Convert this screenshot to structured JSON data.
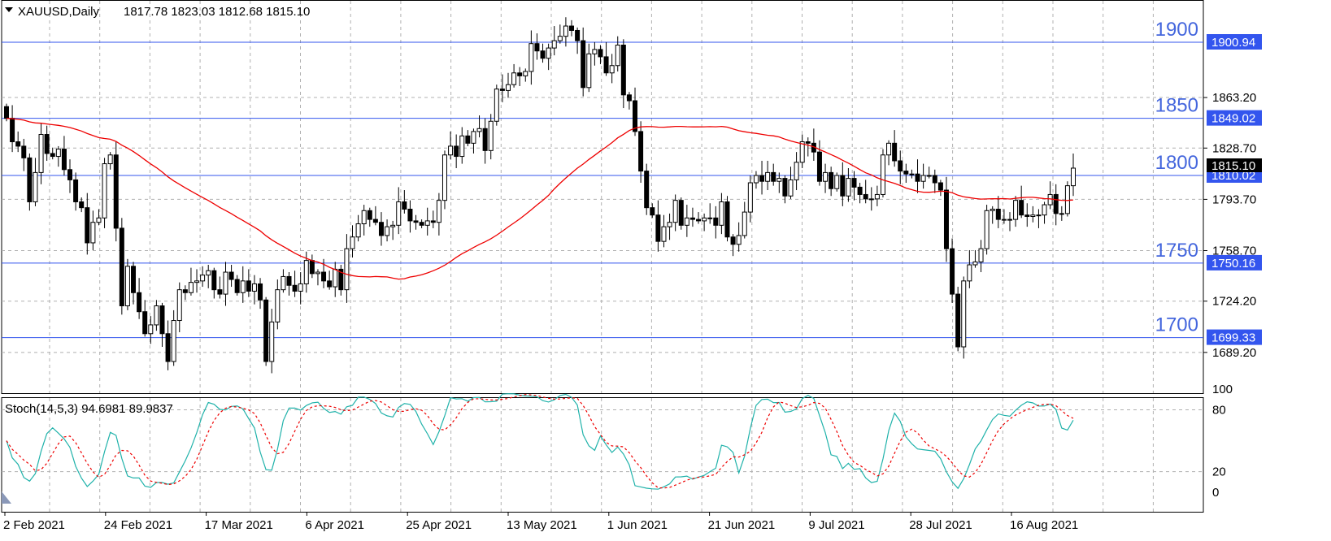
{
  "header": {
    "symbol_label": "XAUUSD,Daily",
    "ohlc_label": "1817.78 1823.03 1812.68 1815.10"
  },
  "stoch_header": {
    "label": "Stoch(14,5,3) 94.6981 89.9837"
  },
  "levels": [
    {
      "big_label": "1900",
      "price_tag": "1900.94",
      "price": 1900.94
    },
    {
      "big_label": "1850",
      "price_tag": "1849.02",
      "price": 1849.02
    },
    {
      "big_label": "1800",
      "price_tag": "1810.02",
      "price": 1810.02
    },
    {
      "big_label": "1750",
      "price_tag": "1750.16",
      "price": 1750.16
    },
    {
      "big_label": "1700",
      "price_tag": "1699.33",
      "price": 1699.33
    }
  ],
  "current_price": {
    "label": "1815.10",
    "price": 1815.1
  },
  "colors": {
    "level_line": "#3355ee",
    "level_text": "#4466dd",
    "ma_line": "#ee0000",
    "stoch_main": "#20b2aa",
    "stoch_signal": "#ee0000",
    "grid": "#b0b0b0"
  },
  "chart_data": {
    "type": "candlestick",
    "symbol": "XAUUSD",
    "timeframe": "Daily",
    "y_axis_ticks": [
      "1863.20",
      "1828.70",
      "1793.70",
      "1758.70",
      "1724.20",
      "1689.20"
    ],
    "x_axis_labels": [
      "2 Feb 2021",
      "24 Feb 2021",
      "17 Mar 2021",
      "6 Apr 2021",
      "25 Apr 2021",
      "13 May 2021",
      "1 Jun 2021",
      "21 Jun 2021",
      "9 Jul 2021",
      "28 Jul 2021",
      "16 Aug 2021"
    ],
    "ylim": [
      1675,
      1920
    ],
    "candles_close": [
      1849,
      1833,
      1830,
      1822,
      1792,
      1812,
      1838,
      1825,
      1823,
      1828,
      1814,
      1807,
      1792,
      1788,
      1764,
      1778,
      1781,
      1818,
      1824,
      1774,
      1721,
      1748,
      1730,
      1717,
      1702,
      1708,
      1721,
      1702,
      1683,
      1711,
      1732,
      1730,
      1737,
      1738,
      1742,
      1745,
      1732,
      1729,
      1744,
      1739,
      1730,
      1738,
      1731,
      1736,
      1725,
      1683,
      1710,
      1732,
      1741,
      1735,
      1731,
      1736,
      1752,
      1743,
      1744,
      1738,
      1734,
      1746,
      1732,
      1760,
      1768,
      1777,
      1786,
      1780,
      1778,
      1769,
      1775,
      1776,
      1792,
      1787,
      1779,
      1778,
      1776,
      1779,
      1778,
      1793,
      1824,
      1830,
      1823,
      1837,
      1832,
      1840,
      1842,
      1827,
      1847,
      1869,
      1868,
      1872,
      1880,
      1878,
      1881,
      1900,
      1895,
      1890,
      1897,
      1902,
      1905,
      1912,
      1909,
      1902,
      1870,
      1893,
      1896,
      1891,
      1880,
      1885,
      1899,
      1865,
      1861,
      1840,
      1813,
      1788,
      1783,
      1765,
      1775,
      1778,
      1793,
      1776,
      1781,
      1780,
      1779,
      1781,
      1781,
      1776,
      1792,
      1768,
      1763,
      1769,
      1785,
      1805,
      1810,
      1806,
      1812,
      1806,
      1808,
      1796,
      1807,
      1819,
      1833,
      1832,
      1826,
      1806,
      1812,
      1801,
      1810,
      1796,
      1808,
      1802,
      1797,
      1794,
      1794,
      1797,
      1824,
      1832,
      1820,
      1813,
      1811,
      1811,
      1806,
      1810,
      1810,
      1805,
      1800,
      1760,
      1729,
      1693,
      1738,
      1749,
      1751,
      1760,
      1786,
      1787,
      1780,
      1780,
      1780,
      1793,
      1783,
      1782,
      1783,
      1783,
      1790,
      1797,
      1784,
      1784,
      1803,
      1815
    ],
    "moving_average": {
      "period": "unlabeled",
      "start": 1849,
      "end": 1797
    },
    "stochastic": {
      "params": "14,5,3",
      "main_value": 94.6981,
      "signal_value": 89.9837,
      "ylim": [
        0,
        100
      ],
      "ticks": [
        "100",
        "80",
        "20",
        "0"
      ]
    }
  }
}
